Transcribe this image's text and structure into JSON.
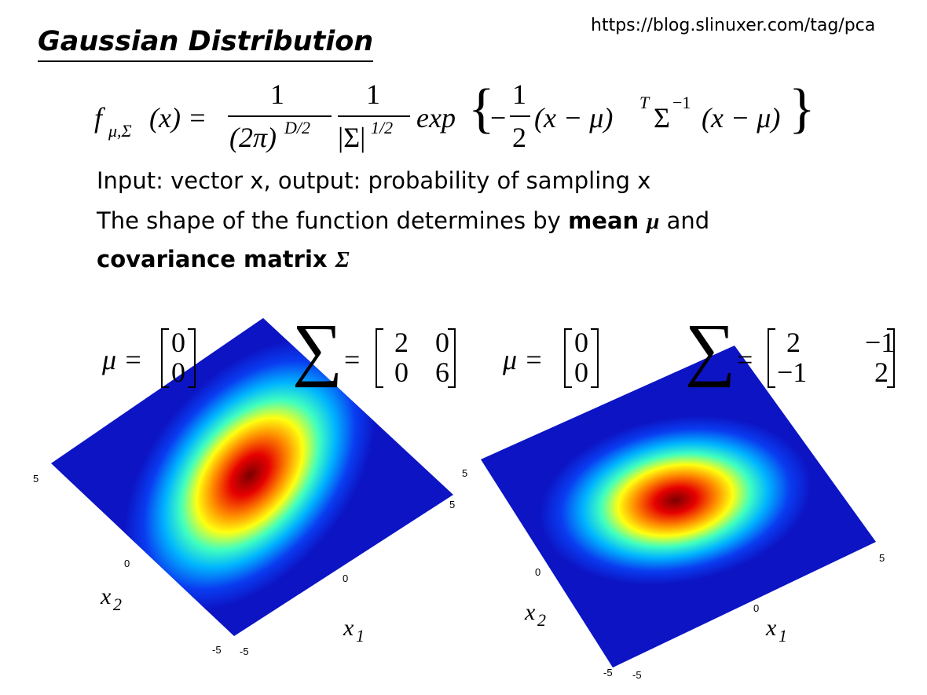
{
  "source_url": "https://blog.slinuxer.com/tag/pca",
  "title": "Gaussian Distribution",
  "formula": {
    "f": "f",
    "f_sub": "μ,Σ",
    "arg": "(x) =",
    "frac1_num": "1",
    "frac1_den": "(2π)",
    "frac1_den_sup": "D/2",
    "frac2_num": "1",
    "frac2_den": "|Σ|",
    "frac2_den_sup": "1/2",
    "exp": "exp",
    "brace_left": "{",
    "minus": "−",
    "frac3_num": "1",
    "frac3_den": "2",
    "term1": "(x − μ)",
    "term1_sup": "T",
    "sigma": "Σ",
    "sigma_sup": "−1",
    "term2": "(x − μ)",
    "brace_right": "}"
  },
  "lines": [
    {
      "text": "Input: vector x, output: probability of sampling x"
    },
    {
      "text": "The shape of the function determines by ",
      "bold": "mean ",
      "bold_symbol": "μ",
      "after": " and"
    },
    {
      "bold": "covariance matrix ",
      "bold_symbol": "Σ"
    }
  ],
  "plots": [
    {
      "mu_label": "μ =",
      "mu": [
        "0",
        "0"
      ],
      "sigma_symbol": "∑",
      "sigma_eq": "=",
      "sigma": [
        [
          "2",
          "0"
        ],
        [
          "0",
          "6"
        ]
      ],
      "x1": "x",
      "x1_sub": "1",
      "x2": "x",
      "x2_sub": "2",
      "ticks": [
        "5",
        "5",
        "0",
        "0",
        "-5",
        "-5"
      ]
    },
    {
      "mu_label": "μ =",
      "mu": [
        "0",
        "0"
      ],
      "sigma_symbol": "∑",
      "sigma_eq": "=",
      "sigma": [
        [
          "2",
          "−1"
        ],
        [
          "−1",
          "2"
        ]
      ],
      "x1": "x",
      "x1_sub": "1",
      "x2": "x",
      "x2_sub": "2",
      "ticks": [
        "5",
        "5",
        "0",
        "0",
        "-5",
        "-5"
      ]
    }
  ]
}
